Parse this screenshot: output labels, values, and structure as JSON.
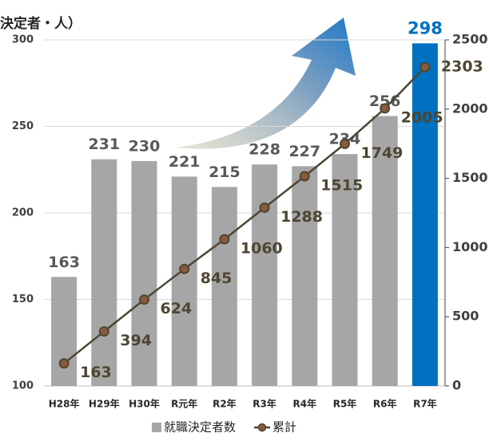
{
  "chart_data": {
    "type": "bar-line",
    "title": "決定者・人）",
    "categories": [
      "H28年",
      "H29年",
      "H30年",
      "R元年",
      "R2年",
      "R3年",
      "R4年",
      "R5年",
      "R6年",
      "R7年"
    ],
    "series": [
      {
        "name": "就職決定者数",
        "type": "bar",
        "color": "#a6a6a6",
        "highlight_color": "#0070c0",
        "values": [
          163,
          231,
          230,
          221,
          215,
          228,
          227,
          234,
          256,
          298
        ]
      },
      {
        "name": "累計",
        "type": "line",
        "axis": "y2",
        "color": "#4d4632",
        "marker_color": "#8b5a3c",
        "values": [
          163,
          394,
          624,
          845,
          1060,
          1288,
          1515,
          1749,
          2005,
          2303
        ]
      }
    ],
    "ylim": [
      100,
      300
    ],
    "yticks": [
      100,
      150,
      200,
      250,
      300
    ],
    "y2lim": [
      0,
      2500
    ],
    "y2ticks": [
      0,
      500,
      1000,
      1500,
      2000,
      2500
    ],
    "grid": true,
    "legend": "bottom"
  }
}
